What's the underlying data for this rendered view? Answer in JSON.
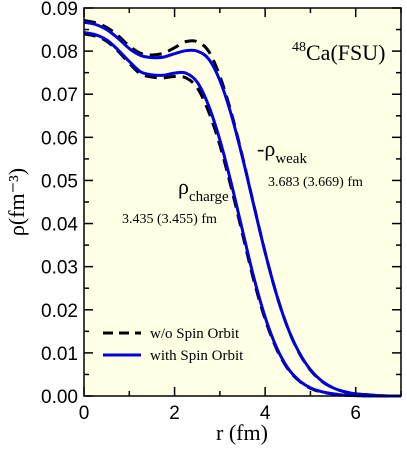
{
  "chart_data": {
    "type": "line",
    "title": "",
    "xlabel": "r (fm)",
    "ylabel": "ρ(fm⁻³)",
    "xlim": [
      0,
      7
    ],
    "ylim": [
      0,
      0.09
    ],
    "x_ticks": [
      "0",
      "2",
      "4",
      "6"
    ],
    "y_ticks": [
      "0.00",
      "0.01",
      "0.02",
      "0.03",
      "0.04",
      "0.05",
      "0.06",
      "0.07",
      "0.08",
      "0.09"
    ],
    "background": "#ffffe6",
    "grid": false,
    "legend_position": "bottom-left",
    "legend": [
      {
        "label": "w/o Spin Orbit",
        "style": "dashed",
        "color": "#000000"
      },
      {
        "label": "with Spin Orbit",
        "style": "solid",
        "color": "#0000dd"
      }
    ],
    "annotations": {
      "panel_label": {
        "sup": "48",
        "text": "Ca(FSU)"
      },
      "charge_label": {
        "base": "ρ",
        "sub": "charge"
      },
      "charge_radius": "3.435 (3.455) fm",
      "weak_label": {
        "base": "-ρ",
        "sub": "weak"
      },
      "weak_radius": "3.683 (3.669) fm"
    },
    "series": [
      {
        "curve": "charge",
        "legend": "w/o Spin Orbit",
        "style": "dashed",
        "color": "#000000",
        "x": [
          0,
          0.25,
          0.5,
          0.75,
          1.0,
          1.25,
          1.5,
          1.75,
          2.0,
          2.25,
          2.5,
          2.75,
          3.0,
          3.25,
          3.5,
          3.75,
          4.0,
          4.25,
          4.5,
          4.75,
          5.0,
          5.25,
          5.5,
          5.75,
          6.0,
          6.25,
          6.5,
          6.75,
          7.0
        ],
        "y": [
          0.084,
          0.0835,
          0.0823,
          0.08,
          0.0772,
          0.0747,
          0.074,
          0.0738,
          0.0741,
          0.0738,
          0.0715,
          0.066,
          0.0582,
          0.0484,
          0.0376,
          0.0268,
          0.0178,
          0.011,
          0.0063,
          0.0035,
          0.0018,
          0.0009,
          0.0005,
          0.0002,
          0.0001,
          0.0,
          0.0,
          0.0,
          0.0
        ]
      },
      {
        "curve": "charge",
        "legend": "with Spin Orbit",
        "style": "solid",
        "color": "#0000dd",
        "x": [
          0,
          0.25,
          0.5,
          0.75,
          1.0,
          1.25,
          1.5,
          1.75,
          2.0,
          2.25,
          2.5,
          2.75,
          3.0,
          3.25,
          3.5,
          3.75,
          4.0,
          4.25,
          4.5,
          4.75,
          5.0,
          5.25,
          5.5,
          5.75,
          6.0,
          6.25,
          6.5,
          6.75,
          7.0
        ],
        "y": [
          0.0843,
          0.0838,
          0.0826,
          0.0803,
          0.0776,
          0.0752,
          0.0745,
          0.0744,
          0.0749,
          0.0749,
          0.0728,
          0.0674,
          0.0594,
          0.0494,
          0.0384,
          0.0275,
          0.0183,
          0.0113,
          0.0065,
          0.0036,
          0.0019,
          0.001,
          0.0005,
          0.0002,
          0.0001,
          0.0,
          0.0,
          0.0,
          0.0
        ]
      },
      {
        "curve": "weak",
        "legend": "w/o Spin Orbit",
        "style": "dashed",
        "color": "#000000",
        "x": [
          0,
          0.25,
          0.5,
          0.75,
          1.0,
          1.25,
          1.5,
          1.75,
          2.0,
          2.25,
          2.5,
          2.75,
          3.0,
          3.25,
          3.5,
          3.75,
          4.0,
          4.25,
          4.5,
          4.75,
          5.0,
          5.25,
          5.5,
          5.75,
          6.0,
          6.25,
          6.5,
          6.75,
          7.0
        ],
        "y": [
          0.0871,
          0.0866,
          0.0855,
          0.0836,
          0.0812,
          0.0795,
          0.0791,
          0.0795,
          0.0808,
          0.0822,
          0.0822,
          0.08,
          0.0742,
          0.0658,
          0.0555,
          0.0443,
          0.0333,
          0.0236,
          0.0158,
          0.01,
          0.006,
          0.0034,
          0.0019,
          0.001,
          0.0005,
          0.0003,
          0.0001,
          0.0,
          0.0
        ]
      },
      {
        "curve": "weak",
        "legend": "with Spin Orbit",
        "style": "solid",
        "color": "#0000dd",
        "x": [
          0,
          0.25,
          0.5,
          0.75,
          1.0,
          1.25,
          1.5,
          1.75,
          2.0,
          2.25,
          2.5,
          2.75,
          3.0,
          3.25,
          3.5,
          3.75,
          4.0,
          4.25,
          4.5,
          4.75,
          5.0,
          5.25,
          5.5,
          5.75,
          6.0,
          6.25,
          6.5,
          6.75,
          7.0
        ],
        "y": [
          0.0867,
          0.0862,
          0.085,
          0.083,
          0.0806,
          0.079,
          0.0785,
          0.0786,
          0.0794,
          0.0801,
          0.08,
          0.0782,
          0.0732,
          0.0653,
          0.0553,
          0.0442,
          0.0333,
          0.0236,
          0.0158,
          0.0101,
          0.0061,
          0.0035,
          0.0019,
          0.001,
          0.0005,
          0.0003,
          0.0001,
          0.0,
          0.0
        ]
      }
    ]
  }
}
